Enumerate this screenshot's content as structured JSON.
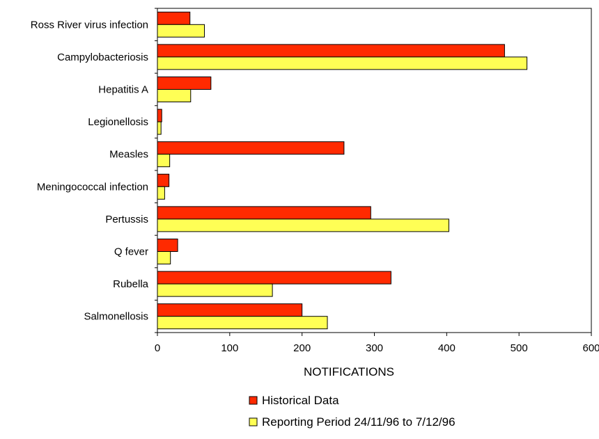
{
  "chart_data": {
    "type": "bar",
    "orientation": "horizontal",
    "categories": [
      "Ross River virus infection",
      "Campylobacteriosis",
      "Hepatitis A",
      "Legionellosis",
      "Measles",
      "Meningococcal infection",
      "Pertussis",
      "Q fever",
      "Rubella",
      "Salmonellosis"
    ],
    "series": [
      {
        "name": "Historical Data",
        "color": "#ff2a00",
        "values": [
          45,
          480,
          74,
          6,
          258,
          16,
          295,
          28,
          323,
          200
        ]
      },
      {
        "name": "Reporting Period 24/11/96 to 7/12/96",
        "color": "#ffff55",
        "values": [
          65,
          511,
          46,
          5,
          17,
          10,
          403,
          18,
          159,
          235
        ]
      }
    ],
    "xlabel": "NOTIFICATIONS",
    "xlim": [
      0,
      600
    ],
    "xticks": [
      "0",
      "100",
      "200",
      "300",
      "400",
      "500",
      "600"
    ],
    "grid": false,
    "legend_position": "bottom"
  }
}
